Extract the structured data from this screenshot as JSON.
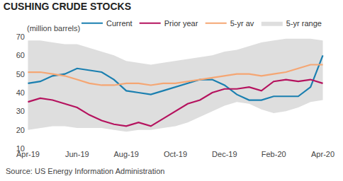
{
  "chart_data": {
    "type": "line",
    "title": "CUSHING CRUDE STOCKS",
    "ylabel": "(million barrels)",
    "source": "Source: US Energy Information Administration",
    "categories": [
      "Apr-19",
      null,
      null,
      null,
      "Jun-19",
      null,
      null,
      null,
      "Aug-19",
      null,
      null,
      null,
      "Oct-19",
      null,
      null,
      null,
      "Dec-19",
      null,
      null,
      null,
      "Feb-20",
      null,
      null,
      null,
      "Apr-20"
    ],
    "series": [
      {
        "name": "Current",
        "color": "#1a7fb0",
        "type": "line",
        "values": [
          45,
          46,
          49,
          50,
          53,
          52,
          51,
          47,
          41,
          40,
          39,
          41,
          43,
          45,
          47,
          47,
          44,
          39,
          36,
          36,
          38,
          38,
          38,
          43,
          60
        ]
      },
      {
        "name": "Prior year",
        "color": "#b5125e",
        "type": "line",
        "values": [
          35,
          37,
          36,
          34,
          32,
          28,
          25,
          23,
          22,
          24,
          22,
          26,
          30,
          34,
          36,
          40,
          42,
          42,
          43,
          41,
          46,
          47,
          46,
          47,
          45
        ]
      },
      {
        "name": "5-yr av",
        "color": "#f5a673",
        "type": "line",
        "values": [
          51,
          51,
          50,
          49,
          47,
          45,
          44,
          44,
          45,
          45,
          44,
          45,
          45,
          46,
          47,
          48,
          49,
          50,
          50,
          49,
          50,
          51,
          53,
          55,
          55
        ]
      },
      {
        "name": "5-yr range",
        "color": "#dedede",
        "type": "area",
        "low": [
          20,
          21,
          22,
          22,
          21,
          21,
          21,
          20,
          19,
          20,
          20,
          21,
          22,
          24,
          27,
          30,
          33,
          35,
          34,
          31,
          29,
          30,
          32,
          35,
          36
        ],
        "high": [
          68,
          68,
          67,
          66,
          66,
          64,
          62,
          60,
          57,
          56,
          55,
          56,
          57,
          58,
          59,
          60,
          62,
          63,
          65,
          67,
          68,
          69,
          69,
          69,
          68
        ]
      }
    ],
    "ylim": [
      10,
      70
    ],
    "yticks": [
      10,
      20,
      30,
      40,
      50,
      60,
      70
    ],
    "grid": false,
    "legend": "top"
  }
}
